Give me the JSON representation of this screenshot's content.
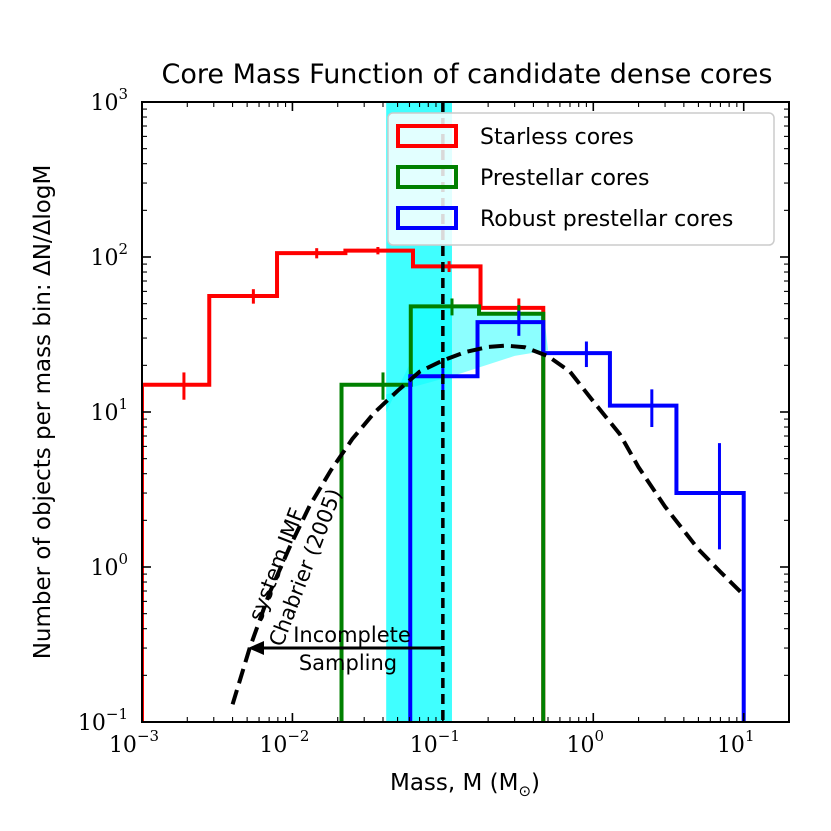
{
  "chart_data": {
    "type": "step-histogram",
    "title": "Core Mass Function of candidate dense cores",
    "xlabel": "Mass, M (M",
    "xlabel_suffix": ")",
    "ylabel": "Number of objects per mass bin:  ΔN/ΔlogM",
    "xscale": "log",
    "yscale": "log",
    "xlim": [
      0.001,
      20
    ],
    "ylim": [
      0.1,
      1000
    ],
    "xticks": [
      {
        "value": 0.001,
        "base": "10",
        "exp": "−3"
      },
      {
        "value": 0.01,
        "base": "10",
        "exp": "−2"
      },
      {
        "value": 0.1,
        "base": "10",
        "exp": "−1"
      },
      {
        "value": 1,
        "base": "10",
        "exp": "0"
      },
      {
        "value": 10,
        "base": "10",
        "exp": "1"
      }
    ],
    "yticks": [
      {
        "value": 0.1,
        "base": "10",
        "exp": "−1"
      },
      {
        "value": 1,
        "base": "10",
        "exp": "0"
      },
      {
        "value": 10,
        "base": "10",
        "exp": "1"
      },
      {
        "value": 100,
        "base": "10",
        "exp": "2"
      },
      {
        "value": 1000,
        "base": "10",
        "exp": "3"
      }
    ],
    "legend_position": "top-right",
    "series": [
      {
        "name": "Starless cores",
        "color": "#ff0000",
        "bin_edges": [
          0.001,
          0.0028,
          0.0079,
          0.0225,
          0.0633,
          0.178,
          0.465
        ],
        "values": [
          15,
          56,
          106,
          110,
          87,
          47
        ],
        "centers": [
          0.0019,
          0.0055,
          0.0145,
          0.037,
          0.11,
          0.32
        ],
        "err_low": [
          12,
          50,
          98,
          104,
          80,
          40
        ],
        "err_high": [
          18,
          62,
          114,
          116,
          94,
          54
        ]
      },
      {
        "name": "Prestellar cores",
        "color": "#008000",
        "bin_edges": [
          0.0212,
          0.0612,
          0.174,
          0.465
        ],
        "values": [
          15,
          48,
          43
        ],
        "centers": [
          0.04,
          0.115,
          0.32
        ],
        "err_low": [
          12,
          42,
          37
        ],
        "err_high": [
          18,
          54,
          49
        ]
      },
      {
        "name": "Robust prestellar cores",
        "color": "#0000ff",
        "bin_edges": [
          0.0607,
          0.17,
          0.465,
          1.29,
          3.57,
          10.0
        ],
        "values": [
          17,
          38,
          24,
          11,
          3
        ],
        "centers": [
          0.1,
          0.32,
          0.9,
          2.45,
          6.9
        ],
        "err_low": [
          13.5,
          31,
          19.5,
          8,
          1.3
        ],
        "err_high": [
          20.5,
          45,
          28.5,
          14,
          6.3
        ]
      }
    ],
    "reference_curve": {
      "name": "system IMF Chabrier (2005)",
      "style": "dashed",
      "color": "#000000",
      "x": [
        0.004,
        0.0052,
        0.007,
        0.0095,
        0.013,
        0.018,
        0.025,
        0.035,
        0.05,
        0.07,
        0.1,
        0.14,
        0.2,
        0.26,
        0.35,
        0.5,
        0.7,
        1.0,
        1.5,
        2.0,
        3.0,
        5.0,
        7.0,
        10.0
      ],
      "y": [
        0.13,
        0.3,
        0.67,
        1.32,
        2.48,
        4.2,
        6.7,
        9.9,
        13.7,
        18.2,
        21.5,
        24.3,
        26.3,
        26.8,
        26.2,
        22.9,
        18.2,
        11.7,
        7.2,
        4.4,
        2.45,
        1.3,
        0.93,
        0.66
      ]
    },
    "incompleteness_band": {
      "x_range": [
        0.042,
        0.115
      ],
      "color": "#00ffff"
    },
    "completeness_limit_x": 0.1,
    "annotations": [
      {
        "text": "system IMF",
        "angle": -69
      },
      {
        "text": "Chabrier (2005)",
        "angle": -69
      },
      {
        "text": "Incomplete"
      },
      {
        "text": "Sampling"
      }
    ]
  }
}
